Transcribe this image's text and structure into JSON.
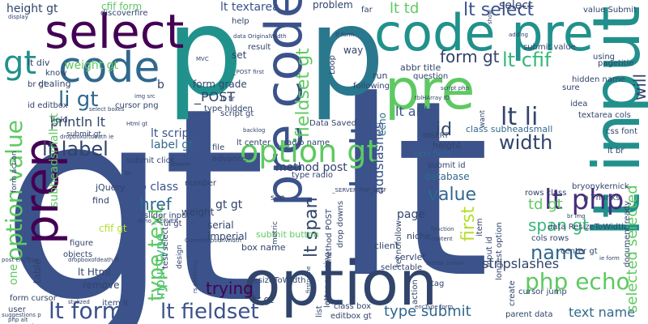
{
  "words": [
    {
      "text": "gt",
      "color": "#3b528b"
    },
    {
      "text": "lt",
      "color": "#3b528b"
    },
    {
      "text": "p",
      "color": "#21918c"
    },
    {
      "text": "p",
      "color": "#2a788e"
    },
    {
      "text": "option",
      "color": "#31446b"
    },
    {
      "text": "lt input",
      "color": "#21908d"
    },
    {
      "text": "pre",
      "color": "#5ec962"
    },
    {
      "text": "code pre",
      "color": "#21918c"
    },
    {
      "text": "pre code",
      "color": "#3b528b"
    },
    {
      "text": "select",
      "color": "#440154"
    },
    {
      "text": "code",
      "color": "#31688e"
    },
    {
      "text": "code lt",
      "color": "#3b528b"
    },
    {
      "text": "prep",
      "color": "#440154"
    },
    {
      "text": "input type",
      "color": "#35b779"
    },
    {
      "text": "option gt",
      "color": "#5ec962"
    },
    {
      "text": "lt php",
      "color": "#472d7b"
    },
    {
      "text": "lt form",
      "color": "#3b528b"
    },
    {
      "text": "lt fieldset",
      "color": "#3b528b"
    },
    {
      "text": "php echo",
      "color": "#5ec962"
    },
    {
      "text": "option value",
      "color": "#5ec962"
    },
    {
      "text": "type text",
      "color": "#5ec962"
    },
    {
      "text": "gt",
      "color": "#21918c"
    },
    {
      "text": "li gt",
      "color": "#31688e"
    },
    {
      "text": "lt label",
      "color": "#31446b"
    },
    {
      "text": "lt li",
      "color": "#31446b"
    },
    {
      "text": "width",
      "color": "#31446b"
    },
    {
      "text": "name",
      "color": "#31688e"
    },
    {
      "text": "value",
      "color": "#31688e"
    },
    {
      "text": "lt cfif",
      "color": "#35b779"
    },
    {
      "text": "lt select",
      "color": "#3b528b"
    },
    {
      "text": "form gt",
      "color": "#31446b"
    },
    {
      "text": "lt td",
      "color": "#5ec962"
    },
    {
      "text": "href",
      "color": "#31688e"
    },
    {
      "text": "trying",
      "color": "#440154"
    },
    {
      "text": "span gt",
      "color": "#35b779"
    },
    {
      "text": "td gt",
      "color": "#5ec962"
    },
    {
      "text": "lt span",
      "color": "#31446b"
    },
    {
      "text": "text name",
      "color": "#31688e"
    },
    {
      "text": "type submit",
      "color": "#31688e"
    },
    {
      "text": "first",
      "color": "#b5de2b"
    },
    {
      "text": "selected selected",
      "color": "#5ec962"
    },
    {
      "text": "will",
      "color": "#31446b"
    },
    {
      "text": "id",
      "color": "#31446b"
    },
    {
      "text": "weight gt",
      "color": "#5ec962"
    },
    {
      "text": "height gt",
      "color": "#31446b"
    },
    {
      "text": "cfif form",
      "color": "#5ec962"
    },
    {
      "text": "select",
      "color": "#31446b"
    },
    {
      "text": "lt textarea",
      "color": "#3b528b"
    },
    {
      "text": "println lt",
      "color": "#31446b"
    },
    {
      "text": "fieldset gt",
      "color": "#5ec962"
    },
    {
      "text": "stripslashes",
      "color": "#31446b"
    },
    {
      "text": "addslashes",
      "color": "#3b528b"
    },
    {
      "text": "label gt",
      "color": "#31688e"
    },
    {
      "text": "lt script",
      "color": "#3b528b"
    },
    {
      "text": "lt abbr",
      "color": "#3b528b"
    },
    {
      "text": "_POST",
      "color": "#31446b"
    },
    {
      "text": "form grade",
      "color": "#31446b"
    },
    {
      "text": "method post",
      "color": "#31446b"
    },
    {
      "text": "p class",
      "color": "#3b528b"
    },
    {
      "text": "gt gt",
      "color": "#31446b"
    },
    {
      "text": "cfif gt",
      "color": "#b5de2b"
    },
    {
      "text": "submit button",
      "color": "#5ec962"
    },
    {
      "text": "box name",
      "color": "#31446b"
    },
    {
      "text": "tr gt",
      "color": "#31446b"
    },
    {
      "text": "imperial",
      "color": "#31446b"
    },
    {
      "text": "serial",
      "color": "#31446b"
    },
    {
      "text": "weight",
      "color": "#31446b"
    },
    {
      "text": "lt Html",
      "color": "#31446b"
    },
    {
      "text": "remove",
      "color": "#31446b"
    },
    {
      "text": "table",
      "color": "#31446b"
    },
    {
      "text": "one",
      "color": "#5ec962"
    },
    {
      "text": "page",
      "color": "#31446b"
    },
    {
      "text": "subheadsmall gt",
      "color": "#5ec962"
    },
    {
      "text": "echo",
      "color": "#31688e"
    },
    {
      "text": "database",
      "color": "#31688e"
    },
    {
      "text": "submit id",
      "color": "#31446b"
    },
    {
      "text": "text field",
      "color": "#31688e"
    },
    {
      "text": "class subheadsmall",
      "color": "#31688e"
    },
    {
      "text": "height",
      "color": "#31446b"
    },
    {
      "text": "Data Saved",
      "color": "#31446b"
    },
    {
      "text": "problem",
      "color": "#31446b"
    },
    {
      "text": "discoverfire",
      "color": "#31446b"
    },
    {
      "text": "set",
      "color": "#31446b"
    },
    {
      "text": "dealing",
      "color": "#31446b"
    },
    {
      "text": "way",
      "color": "#31446b"
    },
    {
      "text": "lt div",
      "color": "#31446b"
    },
    {
      "text": "br gt",
      "color": "#31446b"
    },
    {
      "text": "id editbox",
      "color": "#31446b"
    },
    {
      "text": "abbr title",
      "color": "#31446b"
    },
    {
      "text": "question",
      "color": "#31446b"
    },
    {
      "text": "value Submit",
      "color": "#31446b"
    },
    {
      "text": "submit value",
      "color": "#31446b"
    },
    {
      "text": "hidden name",
      "color": "#31446b"
    },
    {
      "text": "pagetitle",
      "color": "#31446b"
    },
    {
      "text": "using",
      "color": "#31446b"
    },
    {
      "text": "idea",
      "color": "#31446b"
    },
    {
      "text": "textarea cols",
      "color": "#31446b"
    },
    {
      "text": "css font",
      "color": "#31446b"
    },
    {
      "text": "sure",
      "color": "#31446b"
    },
    {
      "text": "lt br",
      "color": "#31446b"
    },
    {
      "text": "bryonykernick",
      "color": "#31446b"
    },
    {
      "text": "p Thanks",
      "color": "#31446b"
    },
    {
      "text": "cols rows",
      "color": "#31446b"
    },
    {
      "text": "rows class",
      "color": "#31446b"
    },
    {
      "text": "document ready",
      "color": "#31446b"
    },
    {
      "text": "center gt",
      "color": "#31446b"
    },
    {
      "text": "parent data",
      "color": "#31446b"
    },
    {
      "text": "editbox gt",
      "color": "#31446b"
    },
    {
      "text": "class box",
      "color": "#31446b"
    },
    {
      "text": "tag",
      "color": "#31446b"
    },
    {
      "text": "selectable",
      "color": "#31446b"
    },
    {
      "text": "cursor jump",
      "color": "#31446b"
    },
    {
      "text": "niche",
      "color": "#31446b"
    },
    {
      "text": "client",
      "color": "#31446b"
    },
    {
      "text": "servlet",
      "color": "#31446b"
    },
    {
      "text": "run",
      "color": "#31446b"
    },
    {
      "text": "following",
      "color": "#31446b"
    },
    {
      "text": "lt tr",
      "color": "#31446b"
    },
    {
      "text": "lt center",
      "color": "#31446b"
    },
    {
      "text": "radio name",
      "color": "#31446b"
    },
    {
      "text": "type radio",
      "color": "#31446b"
    },
    {
      "text": "script gt",
      "color": "#31446b"
    },
    {
      "text": "file",
      "color": "#31446b"
    },
    {
      "text": "advance",
      "color": "#31446b"
    },
    {
      "text": "cursor png",
      "color": "#31446b"
    },
    {
      "text": "submit click",
      "color": "#31446b"
    },
    {
      "text": "type hidden",
      "color": "#31446b"
    },
    {
      "text": "number",
      "color": "#31446b"
    },
    {
      "text": "jQuery",
      "color": "#31446b"
    },
    {
      "text": "find",
      "color": "#31446b"
    },
    {
      "text": "slider input",
      "color": "#31446b"
    },
    {
      "text": "ul gt",
      "color": "#31446b"
    },
    {
      "text": "figure",
      "color": "#31446b"
    },
    {
      "text": "objects",
      "color": "#31446b"
    },
    {
      "text": "form cursor",
      "color": "#31446b"
    },
    {
      "text": "user",
      "color": "#31446b"
    },
    {
      "text": "item lt",
      "color": "#31446b"
    },
    {
      "text": "ResizeToWidth",
      "color": "#31446b"
    },
    {
      "text": "see",
      "color": "#31446b"
    },
    {
      "text": "field",
      "color": "#31446b"
    },
    {
      "text": "know",
      "color": "#31446b"
    },
    {
      "text": "help",
      "color": "#31446b"
    },
    {
      "text": "result",
      "color": "#31446b"
    },
    {
      "text": "far",
      "color": "#31446b"
    },
    {
      "text": "Loop",
      "color": "#31446b"
    },
    {
      "text": "data ResizeToWidth",
      "color": "#31446b"
    },
    {
      "text": "create",
      "color": "#31446b"
    },
    {
      "text": "design",
      "color": "#31446b"
    },
    {
      "text": "action",
      "color": "#31446b"
    },
    {
      "text": "list",
      "color": "#31446b"
    },
    {
      "text": "input id",
      "color": "#31446b"
    },
    {
      "text": "longest option",
      "color": "#31446b"
    },
    {
      "text": "item",
      "color": "#31446b"
    },
    {
      "text": "drop downs",
      "color": "#31446b"
    },
    {
      "text": "method POST",
      "color": "#31446b"
    },
    {
      "text": "letter spacing",
      "color": "#31446b"
    },
    {
      "text": "rel nofollow",
      "color": "#31446b"
    },
    {
      "text": "INSERT",
      "color": "#31446b"
    },
    {
      "text": "want",
      "color": "#31446b"
    },
    {
      "text": "b",
      "color": "#31446b"
    },
    {
      "text": "metric",
      "color": "#31446b"
    },
    {
      "text": "test select",
      "color": "#31446b"
    },
    {
      "text": "select boxes",
      "color": "#31446b"
    },
    {
      "text": "display",
      "color": "#31446b"
    },
    {
      "text": "data OriginalWidth",
      "color": "#31446b"
    },
    {
      "text": "show",
      "color": "#31446b"
    },
    {
      "text": "adding",
      "color": "#31446b"
    },
    {
      "text": "MVC",
      "color": "#31446b"
    },
    {
      "text": "dropboxoftdeath ie",
      "color": "#31446b"
    },
    {
      "text": "dropboxofdeath ff",
      "color": "#31446b"
    },
    {
      "text": "function",
      "color": "#31446b"
    },
    {
      "text": "content",
      "color": "#31446b"
    },
    {
      "text": "br img",
      "color": "#31446b"
    },
    {
      "text": "firefox cursor",
      "color": "#31446b"
    },
    {
      "text": "ie form",
      "color": "#31446b"
    },
    {
      "text": "encType form",
      "color": "#31446b"
    },
    {
      "text": "tblHArray ID",
      "color": "#31446b"
    },
    {
      "text": "script php",
      "color": "#31446b"
    },
    {
      "text": "CurrentOptionWidth",
      "color": "#31446b"
    },
    {
      "text": "echo _SERVER",
      "color": "#31446b"
    },
    {
      "text": "_SERVER PHP_SELF",
      "color": "#31446b"
    },
    {
      "text": "_POST first",
      "color": "#31446b"
    },
    {
      "text": "post encType",
      "color": "#31446b"
    },
    {
      "text": "suggestions p",
      "color": "#31446b"
    },
    {
      "text": "php alt",
      "color": "#31446b"
    },
    {
      "text": "Html gt",
      "color": "#31446b"
    },
    {
      "text": "img src",
      "color": "#31446b"
    },
    {
      "text": "ff form",
      "color": "#31446b"
    },
    {
      "text": "backlog",
      "color": "#31446b"
    },
    {
      "text": "answer",
      "color": "#31446b"
    },
    {
      "text": "stylized",
      "color": "#31446b"
    },
    {
      "text": "submit gt",
      "color": "#31446b"
    },
    {
      "text": "form action",
      "color": "#31446b"
    },
    {
      "text": "rs getString",
      "color": "#31446b"
    },
    {
      "text": "firstname",
      "color": "#31446b"
    },
    {
      "text": "br",
      "color": "#31446b"
    }
  ]
}
